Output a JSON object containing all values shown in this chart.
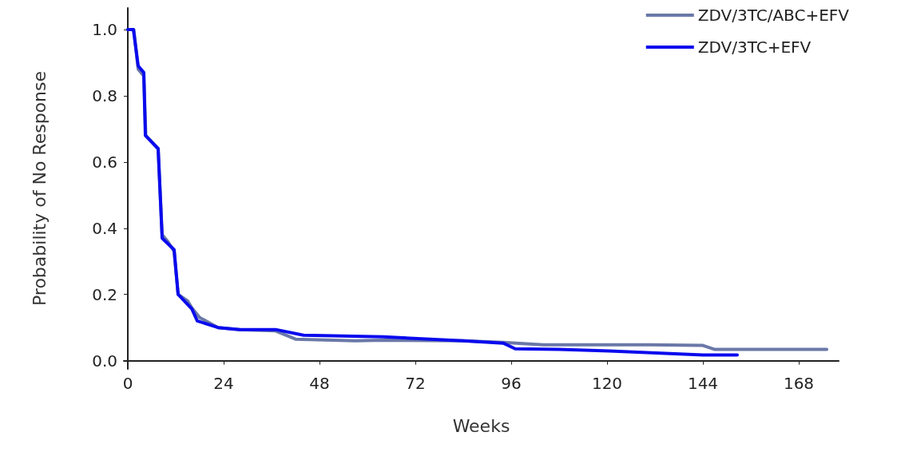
{
  "chart_data": {
    "type": "line",
    "xlabel": "Weeks",
    "ylabel": "Probability of No Response",
    "xlim": [
      -1,
      178
    ],
    "xticks": [
      0,
      24,
      48,
      72,
      96,
      120,
      144,
      168
    ],
    "ylim": [
      -0.025,
      1.065
    ],
    "yticks": [
      {
        "value": 0,
        "label": "0.0"
      },
      {
        "value": 0.2,
        "label": "0.2"
      },
      {
        "value": 0.4,
        "label": "0.4"
      },
      {
        "value": 0.6,
        "label": "0.6"
      },
      {
        "value": 0.8,
        "label": "0.8"
      },
      {
        "value": 1,
        "label": "1.0"
      }
    ],
    "grid": false,
    "legend": "top right",
    "marker": "none",
    "line_style": "solid",
    "series": [
      {
        "name": "ZDV/3TC/ABC+EFV",
        "color": "#6a78a8",
        "x": [
          0,
          1.5,
          2.6,
          4,
          4.5,
          7.6,
          8.6,
          10,
          11.6,
          12.6,
          15,
          16,
          18,
          22.6,
          28,
          37,
          42,
          57,
          64,
          84,
          94,
          104,
          130.6,
          144,
          147,
          175
        ],
        "values": [
          1.0,
          1.0,
          0.88,
          0.86,
          0.68,
          0.64,
          0.38,
          0.36,
          0.33,
          0.2,
          0.18,
          0.16,
          0.13,
          0.1,
          0.094,
          0.09,
          0.065,
          0.06,
          0.062,
          0.06,
          0.055,
          0.048,
          0.048,
          0.046,
          0.034,
          0.034
        ]
      },
      {
        "name": "ZDV/3TC+EFV",
        "color": "#0a0aee",
        "x": [
          0,
          1.4,
          2.6,
          4,
          4.4,
          7.6,
          8.6,
          11.6,
          12.6,
          16,
          17.4,
          22.6,
          28,
          37,
          44,
          64,
          84,
          94,
          97,
          108,
          120.6,
          144,
          152.6
        ],
        "values": [
          1.0,
          1.0,
          0.89,
          0.87,
          0.68,
          0.64,
          0.37,
          0.335,
          0.2,
          0.157,
          0.12,
          0.1,
          0.094,
          0.094,
          0.077,
          0.072,
          0.06,
          0.053,
          0.036,
          0.034,
          0.029,
          0.017,
          0.017
        ]
      }
    ]
  }
}
